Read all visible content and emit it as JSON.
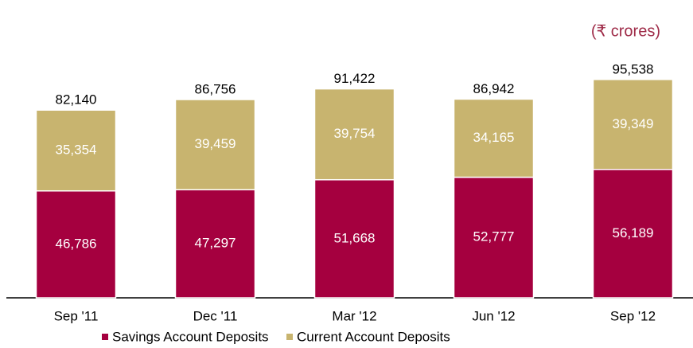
{
  "chart_data": {
    "type": "stacked_bar",
    "unit_label": "(₹ crores)",
    "categories": [
      "Sep '11",
      "Dec '11",
      "Mar '12",
      "Jun '12",
      "Sep '12"
    ],
    "series": [
      {
        "name": "Savings Account Deposits",
        "color": "#a5003f",
        "values": [
          46786,
          47297,
          51668,
          52777,
          56189
        ],
        "value_labels": [
          "46,786",
          "47,297",
          "51,668",
          "52,777",
          "56,189"
        ]
      },
      {
        "name": "Current Account Deposits",
        "color": "#c8b46f",
        "values": [
          35354,
          39459,
          39754,
          34165,
          39349
        ],
        "value_labels": [
          "35,354",
          "39,459",
          "39,754",
          "34,165",
          "39,349"
        ]
      }
    ],
    "totals": [
      82140,
      86756,
      91422,
      86942,
      95538
    ],
    "total_labels": [
      "82,140",
      "86,756",
      "91,422",
      "86,942",
      "95,538"
    ],
    "ylim": [
      0,
      100000
    ]
  }
}
